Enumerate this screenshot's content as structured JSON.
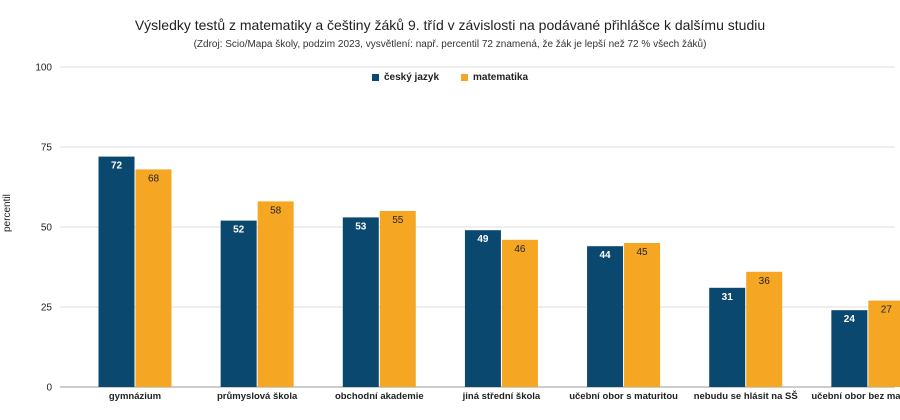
{
  "chart_data": {
    "type": "bar",
    "title": "Výsledky testů z matematiky a češtiny žáků 9. tříd v závislosti na podávané přihlášce k dalšímu studiu",
    "subtitle": "(Zdroj: Scio/Mapa školy, podzim 2023, vysvětlení: např. percentil 72 znamená, že žák je lepší než 72 % všech žáků)",
    "ylabel": "percentil",
    "xlabel": "",
    "ylim": [
      0,
      100
    ],
    "yticks": [
      0,
      25,
      50,
      75,
      100
    ],
    "grid": true,
    "legend_position": "top-center",
    "categories": [
      "gymnázium",
      "průmyslová škola",
      "obchodní akademie",
      "jiná střední škola",
      "učební obor s maturitou",
      "nebudu se hlásit na SŠ",
      "učební obor bez maturity"
    ],
    "series": [
      {
        "name": "český jazyk",
        "color": "#0b4870",
        "label_color": "#ffffff",
        "values": [
          72,
          52,
          53,
          49,
          44,
          31,
          24
        ]
      },
      {
        "name": "matematika",
        "color": "#f5a623",
        "label_color": "#222222",
        "values": [
          68,
          58,
          55,
          46,
          45,
          36,
          27
        ]
      }
    ]
  }
}
